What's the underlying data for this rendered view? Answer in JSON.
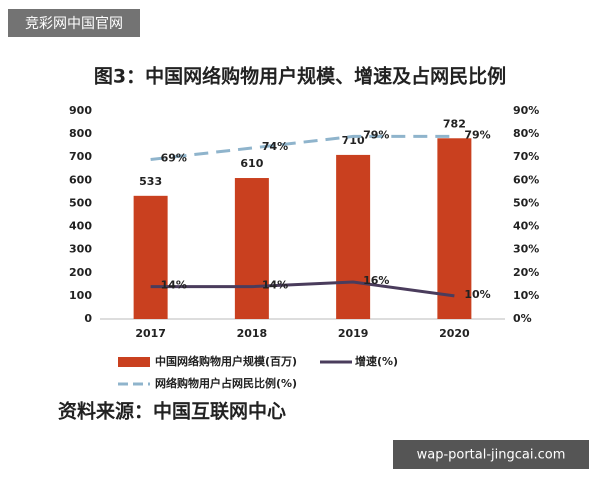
{
  "watermark": "竞彩网中国官网",
  "footer_url": "wap-portal-jingcai.com",
  "source": "资料来源：中国互联网中心",
  "chart_data": {
    "type": "bar",
    "title": "图3：中国网络购物用户规模、增速及占网民比例",
    "categories": [
      "2017",
      "2018",
      "2019",
      "2020"
    ],
    "ylim": [
      0,
      900
    ],
    "yticks": [
      0,
      100,
      200,
      300,
      400,
      500,
      600,
      700,
      800,
      900
    ],
    "y2lim": [
      0,
      90
    ],
    "y2ticks": [
      {
        "value": 0,
        "label": "0%"
      },
      {
        "value": 10,
        "label": "10%"
      },
      {
        "value": 20,
        "label": "20%"
      },
      {
        "value": 30,
        "label": "30%"
      },
      {
        "value": 40,
        "label": "40%"
      },
      {
        "value": 50,
        "label": "50%"
      },
      {
        "value": 60,
        "label": "60%"
      },
      {
        "value": 70,
        "label": "70%"
      },
      {
        "value": 80,
        "label": "80%"
      },
      {
        "value": 90,
        "label": "90%"
      }
    ],
    "grid": false,
    "series": [
      {
        "name": "中国网络购物用户规模(百万)",
        "type": "bar",
        "color": "#c9401f",
        "values": [
          533,
          610,
          710,
          782
        ]
      },
      {
        "name": "增速(%)",
        "type": "line",
        "axis": "y2",
        "color": "#4a3c5c",
        "line_style": "solid",
        "values": [
          14,
          14,
          16,
          10
        ],
        "value_labels": [
          "14%",
          "14%",
          "16%",
          "10%"
        ]
      },
      {
        "name": "网络购物用户占网民比例(%)",
        "type": "line",
        "axis": "y2",
        "color": "#8fb4cc",
        "line_style": "dashed",
        "values": [
          69,
          74,
          79,
          79
        ],
        "value_labels": [
          "69%",
          "74%",
          "79%",
          "79%"
        ]
      }
    ]
  }
}
